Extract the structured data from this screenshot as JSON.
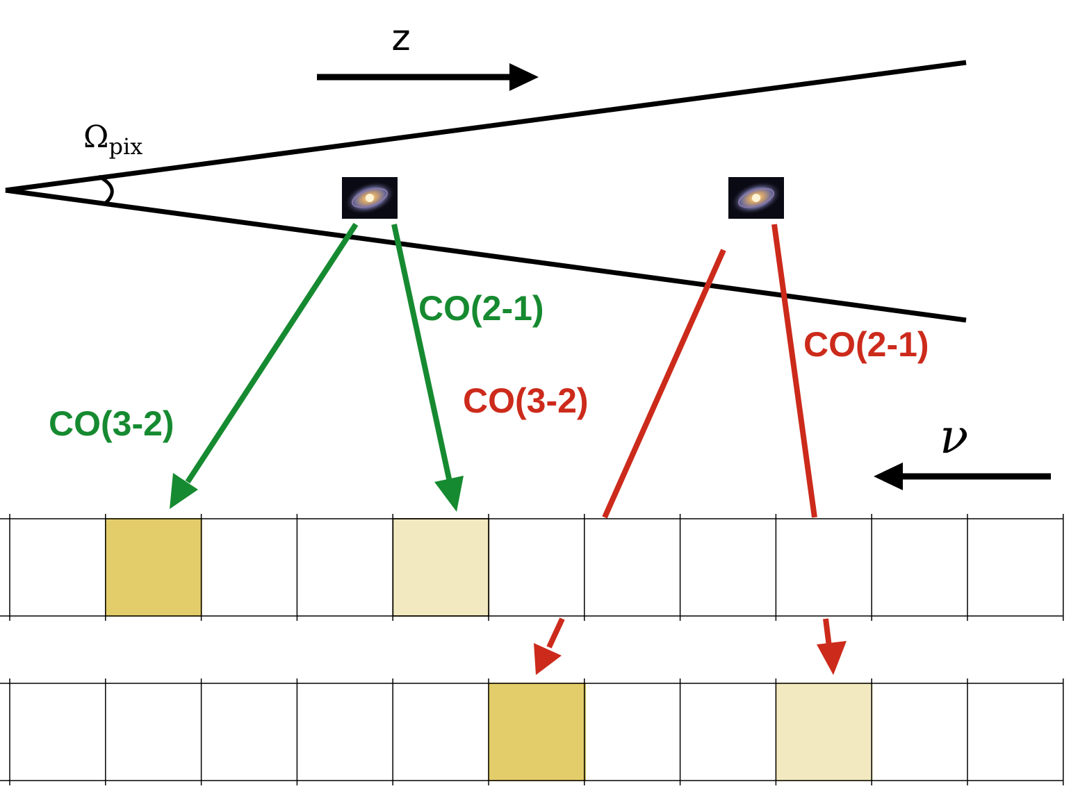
{
  "axes": {
    "z_label": "z",
    "nu_label": "ν",
    "omega_symbol": "Ω",
    "omega_subscript": "pix"
  },
  "labels": {
    "green_co32": "CO(3-2)",
    "green_co21": "CO(2-1)",
    "red_co32": "CO(3-2)",
    "red_co21": "CO(2-1)"
  },
  "colors": {
    "green": "#168A30",
    "red": "#CC2A1B",
    "cell_dark": "#E3CD6B",
    "cell_light": "#F2E9C1",
    "line": "#000000"
  },
  "icons": {
    "galaxy_near": "galaxy-icon",
    "galaxy_far": "galaxy-icon"
  }
}
